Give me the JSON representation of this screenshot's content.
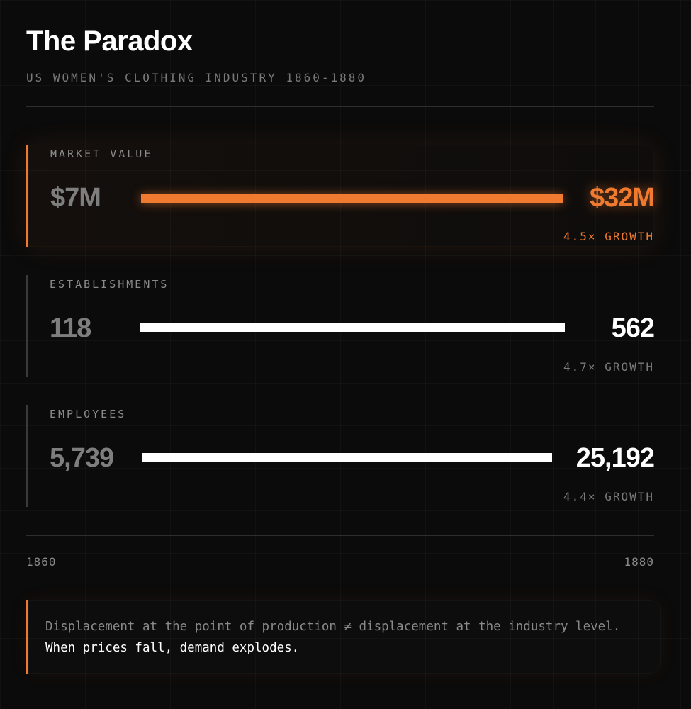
{
  "title": "The Paradox",
  "subtitle": "US WOMEN'S CLOTHING INDUSTRY 1860-1880",
  "colors": {
    "accent": "#f07a30",
    "background": "#0b0b0b",
    "bar_default": "#ffffff",
    "muted_text": "#7a7a7a"
  },
  "chart_data": {
    "type": "bar",
    "title": "The Paradox",
    "subtitle": "US WOMEN'S CLOTHING INDUSTRY 1860-1880",
    "x": [
      "1860",
      "1880"
    ],
    "metrics": [
      {
        "label": "MARKET VALUE",
        "start": 7000000,
        "end": 32000000,
        "start_label": "$7M",
        "end_label": "$32M",
        "growth_label": "4.5× GROWTH",
        "highlighted": true
      },
      {
        "label": "ESTABLISHMENTS",
        "start": 118,
        "end": 562,
        "start_label": "118",
        "end_label": "562",
        "growth_label": "4.7× GROWTH",
        "highlighted": false
      },
      {
        "label": "EMPLOYEES",
        "start": 5739,
        "end": 25192,
        "start_label": "5,739",
        "end_label": "25,192",
        "growth_label": "4.4× GROWTH",
        "highlighted": false
      }
    ],
    "axis": {
      "start_label": "1860",
      "end_label": "1880"
    }
  },
  "note": {
    "dim_text": "Displacement at the point of production ≠ displacement at the industry level.",
    "bright_text": " When prices fall, demand explodes."
  }
}
